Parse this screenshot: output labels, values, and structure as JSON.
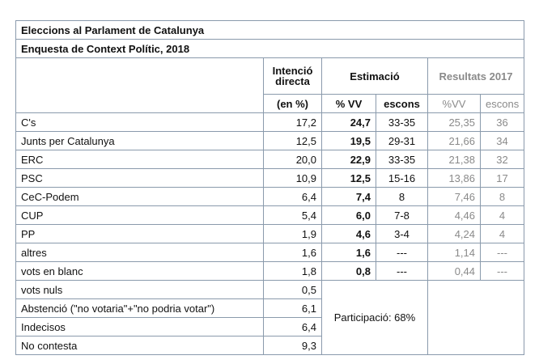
{
  "title": "Eleccions al Parlament de Catalunya",
  "subtitle": "Enquesta de Context Polític, 2018",
  "headers": {
    "intencio_line1": "Intenció",
    "intencio_line2": "directa",
    "intencio_unit": "(en %)",
    "estimacio": "Estimació",
    "pct_vv": "% VV",
    "escons": "escons",
    "resultats": "Resultats 2017",
    "res_pct_vv": "%VV",
    "res_escons": "escons"
  },
  "rows": [
    {
      "party": "C's",
      "intencio": "17,2",
      "vv": "24,7",
      "escons": "33-35",
      "r_vv": "25,35",
      "r_escons": "36"
    },
    {
      "party": "Junts per Catalunya",
      "intencio": "12,5",
      "vv": "19,5",
      "escons": "29-31",
      "r_vv": "21,66",
      "r_escons": "34"
    },
    {
      "party": "ERC",
      "intencio": "20,0",
      "vv": "22,9",
      "escons": "33-35",
      "r_vv": "21,38",
      "r_escons": "32"
    },
    {
      "party": "PSC",
      "intencio": "10,9",
      "vv": "12,5",
      "escons": "15-16",
      "r_vv": "13,86",
      "r_escons": "17"
    },
    {
      "party": "CeC-Podem",
      "intencio": "6,4",
      "vv": "7,4",
      "escons": "8",
      "r_vv": "7,46",
      "r_escons": "8"
    },
    {
      "party": "CUP",
      "intencio": "5,4",
      "vv": "6,0",
      "escons": "7-8",
      "r_vv": "4,46",
      "r_escons": "4"
    },
    {
      "party": "PP",
      "intencio": "1,9",
      "vv": "4,6",
      "escons": "3-4",
      "r_vv": "4,24",
      "r_escons": "4"
    },
    {
      "party": "altres",
      "intencio": "1,6",
      "vv": "1,6",
      "escons": "---",
      "r_vv": "1,14",
      "r_escons": "---"
    },
    {
      "party": "vots en blanc",
      "intencio": "1,8",
      "vv": "0,8",
      "escons": "---",
      "r_vv": "0,44",
      "r_escons": "---"
    }
  ],
  "extra_rows": [
    {
      "label": "vots nuls",
      "value": "0,5"
    },
    {
      "label": "Abstenció (\"no votaria\"+\"no podria votar\")",
      "value": "6,1"
    },
    {
      "label": "Indecisos",
      "value": "6,4"
    },
    {
      "label": "No contesta",
      "value": "9,3"
    }
  ],
  "participacio": "Participació: 68%"
}
